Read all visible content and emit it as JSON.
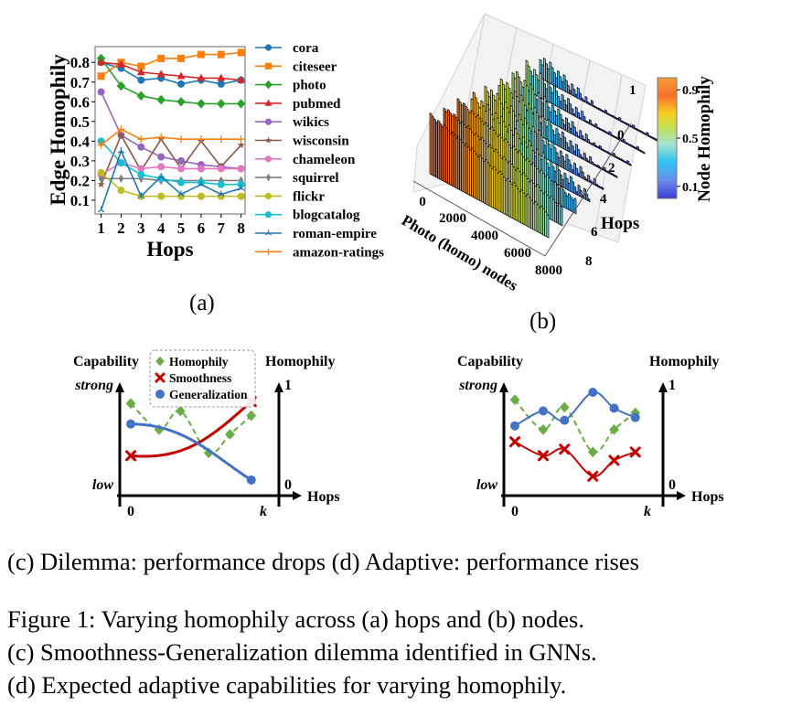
{
  "panel_a": {
    "label": "(a)",
    "chart_data": {
      "type": "line",
      "title": "",
      "xlabel": "Hops",
      "ylabel": "Edge Homophily",
      "x": [
        1,
        2,
        3,
        4,
        5,
        6,
        7,
        8
      ],
      "xticks": [
        "1",
        "2",
        "3",
        "4",
        "5",
        "6",
        "7",
        "8"
      ],
      "yticks": [
        "0.1",
        "0.2",
        "0.3",
        "0.4",
        "0.5",
        "0.6",
        "0.7",
        "0.8"
      ],
      "ylim": [
        0.03,
        0.88
      ],
      "xlim": [
        0.7,
        8.2
      ],
      "grid": false,
      "legend_position": "right-outside",
      "series": [
        {
          "name": "cora",
          "color": "#1f77b4",
          "marker": "circle",
          "values": [
            0.8,
            0.77,
            0.71,
            0.72,
            0.69,
            0.71,
            0.69,
            0.71
          ]
        },
        {
          "name": "citeseer",
          "color": "#ff7f0e",
          "marker": "square",
          "values": [
            0.73,
            0.8,
            0.78,
            0.82,
            0.82,
            0.84,
            0.84,
            0.85
          ]
        },
        {
          "name": "photo",
          "color": "#2ca02c",
          "marker": "diamond",
          "values": [
            0.82,
            0.68,
            0.63,
            0.61,
            0.6,
            0.59,
            0.59,
            0.59
          ]
        },
        {
          "name": "pubmed",
          "color": "#d62728",
          "marker": "triangle",
          "values": [
            0.8,
            0.79,
            0.75,
            0.74,
            0.73,
            0.72,
            0.72,
            0.71
          ]
        },
        {
          "name": "wikics",
          "color": "#9467bd",
          "marker": "circle",
          "values": [
            0.65,
            0.43,
            0.37,
            0.32,
            0.3,
            0.28,
            0.27,
            0.26
          ]
        },
        {
          "name": "wisconsin",
          "color": "#8c564b",
          "marker": "star",
          "values": [
            0.18,
            0.43,
            0.25,
            0.41,
            0.26,
            0.4,
            0.27,
            0.38
          ]
        },
        {
          "name": "chameleon",
          "color": "#e377c2",
          "marker": "circle",
          "values": [
            0.23,
            0.29,
            0.26,
            0.27,
            0.26,
            0.26,
            0.26,
            0.26
          ]
        },
        {
          "name": "squirrel",
          "color": "#7f7f7f",
          "marker": "thin-diamond",
          "values": [
            0.21,
            0.21,
            0.21,
            0.2,
            0.2,
            0.2,
            0.2,
            0.2
          ]
        },
        {
          "name": "flickr",
          "color": "#bcbd22",
          "marker": "circle",
          "values": [
            0.24,
            0.15,
            0.12,
            0.12,
            0.12,
            0.12,
            0.12,
            0.12
          ]
        },
        {
          "name": "blogcatalog",
          "color": "#17becf",
          "marker": "circle",
          "values": [
            0.4,
            0.29,
            0.23,
            0.21,
            0.19,
            0.19,
            0.18,
            0.18
          ]
        },
        {
          "name": "roman-empire",
          "color": "#1f77b4",
          "marker": "tri",
          "values": [
            0.05,
            0.35,
            0.12,
            0.22,
            0.13,
            0.18,
            0.13,
            0.16
          ]
        },
        {
          "name": "amazon-ratings",
          "color": "#ff7f0e",
          "marker": "plus",
          "values": [
            0.38,
            0.46,
            0.41,
            0.42,
            0.41,
            0.41,
            0.41,
            0.41
          ]
        }
      ]
    }
  },
  "panel_b": {
    "label": "(b)",
    "chart_data": {
      "type": "surface3d",
      "title": "",
      "xlabel": "Photo (homo) nodes",
      "ylabel": "Hops",
      "zlabel": "",
      "xticks": [
        "0",
        "2000",
        "4000",
        "6000",
        "8000"
      ],
      "yticks": [
        "0",
        "2",
        "4",
        "6",
        "8"
      ],
      "zticks": [
        "0",
        "1"
      ],
      "xlim": [
        0,
        8000
      ],
      "ylim": [
        0,
        8
      ],
      "zlim": [
        0,
        1
      ],
      "hop_rows": [
        0,
        1,
        2,
        3,
        4,
        5,
        6,
        7,
        8
      ],
      "description": "Node homophily per node (sorted, high to low) per hop; homophily falls along the node axis and across hops",
      "colorbar": {
        "label": "Node Homophily",
        "ticks": [
          "0.1",
          "0.5",
          "0.9"
        ],
        "range": [
          0,
          1
        ],
        "colormap": [
          "#3b3cd6",
          "#5f8be6",
          "#2fc2f2",
          "#9be0c0",
          "#c9e040",
          "#f6d123",
          "#f8881f",
          "#e94e27",
          "#f39c3a"
        ]
      }
    }
  },
  "panel_c": {
    "label": "(c) Dilemma: performance drops",
    "left_axis_title": "Capability",
    "right_axis_title": "Homophily",
    "left_top": "strong",
    "left_bottom": "low",
    "right_top": "1",
    "right_bottom": "0",
    "x_axis_title": "Hops",
    "x_start": "0",
    "x_end": "k",
    "legend": [
      {
        "name": "Homophily",
        "color": "#6aad46",
        "marker": "diamond",
        "style": "dashed"
      },
      {
        "name": "Smoothness",
        "color": "#c00000",
        "marker": "x",
        "style": "solid"
      },
      {
        "name": "Generalization",
        "color": "#4472c4",
        "marker": "circle",
        "style": "solid"
      }
    ],
    "chart_data": {
      "type": "line",
      "note": "schematic; values are relative (0 = low, 1 = strong)",
      "series": [
        {
          "name": "Homophily",
          "x": [
            0,
            0.2,
            0.35,
            0.55,
            0.7,
            0.85
          ],
          "values": [
            0.88,
            0.6,
            0.8,
            0.35,
            0.55,
            0.75
          ]
        },
        {
          "name": "Smoothness",
          "x": [
            0,
            0.85
          ],
          "values": [
            0.32,
            0.9
          ]
        },
        {
          "name": "Generalization",
          "x": [
            0,
            0.85
          ],
          "values": [
            0.66,
            0.06
          ]
        }
      ]
    }
  },
  "panel_d": {
    "label": "(d) Adaptive: performance rises",
    "left_axis_title": "Capability",
    "right_axis_title": "Homophily",
    "left_top": "strong",
    "left_bottom": "low",
    "right_top": "1",
    "right_bottom": "0",
    "x_axis_title": "Hops",
    "x_start": "0",
    "x_end": "k",
    "chart_data": {
      "type": "line",
      "note": "schematic; values are relative (0 = low, 1 = strong)",
      "series": [
        {
          "name": "Homophily",
          "x": [
            0,
            0.2,
            0.35,
            0.55,
            0.7,
            0.85
          ],
          "values": [
            0.92,
            0.6,
            0.84,
            0.36,
            0.6,
            0.78
          ]
        },
        {
          "name": "Smoothness",
          "x": [
            0,
            0.2,
            0.35,
            0.55,
            0.7,
            0.85
          ],
          "values": [
            0.47,
            0.32,
            0.39,
            0.1,
            0.27,
            0.36
          ]
        },
        {
          "name": "Generalization",
          "x": [
            0,
            0.2,
            0.35,
            0.55,
            0.7,
            0.85
          ],
          "values": [
            0.64,
            0.8,
            0.7,
            1.0,
            0.83,
            0.73
          ]
        }
      ]
    }
  },
  "caption": {
    "line1": "Figure 1: Varying homophily across (a) hops and (b) nodes.",
    "line2": "(c) Smoothness-Generalization dilemma identified in GNNs.",
    "line3": "(d) Expected adaptive capabilities for varying homophily."
  }
}
